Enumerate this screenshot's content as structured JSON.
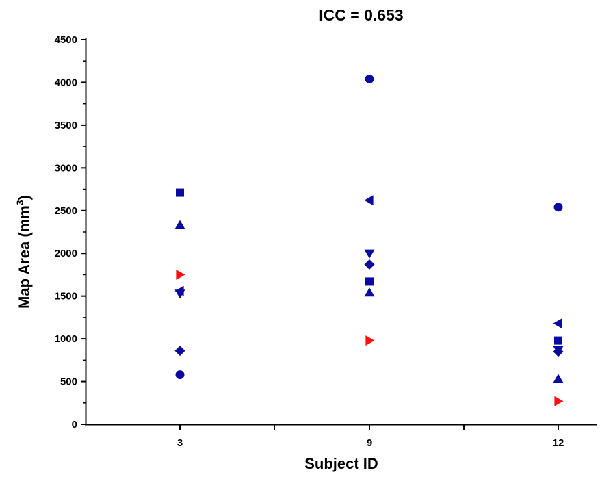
{
  "chart_data": {
    "type": "scatter",
    "title": "ICC = 0.653",
    "xlabel": "Subject ID",
    "ylabel_main": "Map Area (mm",
    "ylabel_sup": "3",
    "ylabel_close": ")",
    "categories": [
      "3",
      "9",
      "12"
    ],
    "ylim": [
      0,
      4500
    ],
    "yticks": [
      0,
      500,
      1000,
      1500,
      2000,
      2500,
      3000,
      3500,
      4000,
      4500
    ],
    "ytick_labels": [
      "0",
      "500",
      "1000",
      "1500",
      "2000",
      "2500",
      "3000",
      "3500",
      "4000",
      "4500"
    ],
    "grid": false,
    "points": [
      {
        "subject": "3",
        "marker": "circle",
        "color": "#0a0aa0",
        "y": 580
      },
      {
        "subject": "3",
        "marker": "diamond",
        "color": "#0a0aa0",
        "y": 860
      },
      {
        "subject": "3",
        "marker": "triangle-down",
        "color": "#0a0aa0",
        "y": 1530
      },
      {
        "subject": "3",
        "marker": "triangle-left",
        "color": "#0a0aa0",
        "y": 1560
      },
      {
        "subject": "3",
        "marker": "triangle-right",
        "color": "#ff1010",
        "y": 1750
      },
      {
        "subject": "3",
        "marker": "triangle-up",
        "color": "#0a0aa0",
        "y": 2330
      },
      {
        "subject": "3",
        "marker": "square",
        "color": "#0a0aa0",
        "y": 2710
      },
      {
        "subject": "9",
        "marker": "circle",
        "color": "#0a0aa0",
        "y": 4040
      },
      {
        "subject": "9",
        "marker": "triangle-left",
        "color": "#0a0aa0",
        "y": 2620
      },
      {
        "subject": "9",
        "marker": "triangle-down",
        "color": "#0a0aa0",
        "y": 2000
      },
      {
        "subject": "9",
        "marker": "diamond",
        "color": "#0a0aa0",
        "y": 1870
      },
      {
        "subject": "9",
        "marker": "square",
        "color": "#0a0aa0",
        "y": 1670
      },
      {
        "subject": "9",
        "marker": "triangle-up",
        "color": "#0a0aa0",
        "y": 1540
      },
      {
        "subject": "9",
        "marker": "triangle-right",
        "color": "#ff1010",
        "y": 980
      },
      {
        "subject": "12",
        "marker": "circle",
        "color": "#0a0aa0",
        "y": 2540
      },
      {
        "subject": "12",
        "marker": "triangle-left",
        "color": "#0a0aa0",
        "y": 1180
      },
      {
        "subject": "12",
        "marker": "square",
        "color": "#0a0aa0",
        "y": 980
      },
      {
        "subject": "12",
        "marker": "triangle-down",
        "color": "#0a0aa0",
        "y": 870
      },
      {
        "subject": "12",
        "marker": "diamond",
        "color": "#0a0aa0",
        "y": 850
      },
      {
        "subject": "12",
        "marker": "triangle-up",
        "color": "#0a0aa0",
        "y": 530
      },
      {
        "subject": "12",
        "marker": "triangle-right",
        "color": "#ff1010",
        "y": 270
      }
    ]
  }
}
